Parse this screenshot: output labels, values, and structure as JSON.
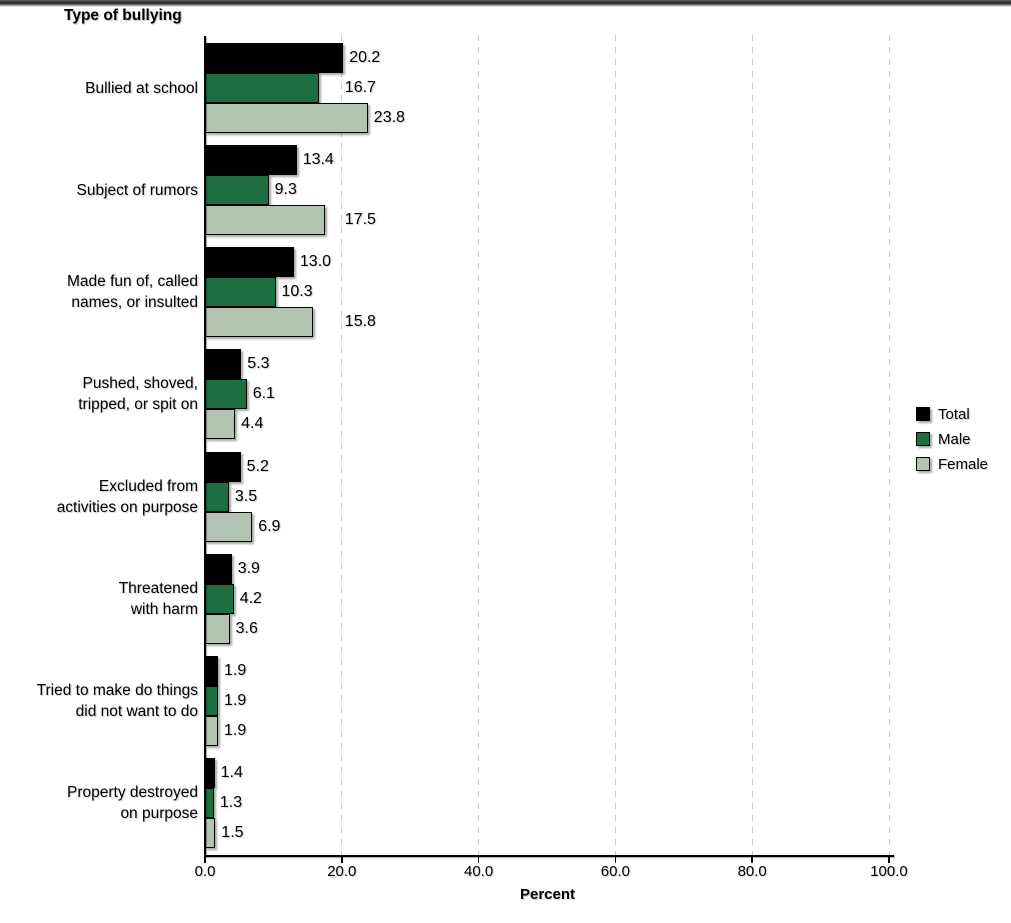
{
  "window": {
    "top_border": "gradient-strip"
  },
  "chart_data": {
    "type": "bar",
    "orientation": "horizontal",
    "title": "Type of bullying",
    "xlabel": "Percent",
    "xlim": [
      0,
      100
    ],
    "xticks": [
      0,
      20,
      40,
      60,
      80,
      100
    ],
    "xtick_labels": [
      "0.0",
      "20.0",
      "40.0",
      "60.0",
      "80.0",
      "100.0"
    ],
    "grid": {
      "axis": "x",
      "style": "dashed",
      "color": "#c6c6c6"
    },
    "value_labels_shown": true,
    "value_label_decimals": 1,
    "categories": [
      "Bullied at school",
      "Subject of rumors",
      "Made fun of, called names, or insulted",
      "Pushed, shoved, tripped, or spit on",
      "Excluded from activities on purpose",
      "Threatened with harm",
      "Tried to make do things did not want to do",
      "Property destroyed on purpose"
    ],
    "category_display_lines": [
      [
        "Bullied at school"
      ],
      [
        "Subject of rumors"
      ],
      [
        "Made fun of, called",
        "names, or insulted"
      ],
      [
        "Pushed, shoved,",
        "tripped, or spit on"
      ],
      [
        "Excluded from",
        "activities on purpose"
      ],
      [
        "Threatened",
        "with harm"
      ],
      [
        "Tried to make do things",
        "did not want to do"
      ],
      [
        "Property destroyed",
        "on purpose"
      ]
    ],
    "series": [
      {
        "name": "Total",
        "color": "#000000",
        "values": [
          20.2,
          13.4,
          13.0,
          5.3,
          5.2,
          3.9,
          1.9,
          1.4
        ]
      },
      {
        "name": "Male",
        "color": "#1d6e40",
        "values": [
          16.7,
          9.3,
          10.3,
          6.1,
          3.5,
          4.2,
          1.9,
          1.3
        ]
      },
      {
        "name": "Female",
        "color": "#b3c5b2",
        "values": [
          23.8,
          17.5,
          15.8,
          4.4,
          6.9,
          3.6,
          1.9,
          1.5
        ]
      }
    ],
    "legend": {
      "position": "right",
      "entries": [
        "Total",
        "Male",
        "Female"
      ]
    }
  }
}
